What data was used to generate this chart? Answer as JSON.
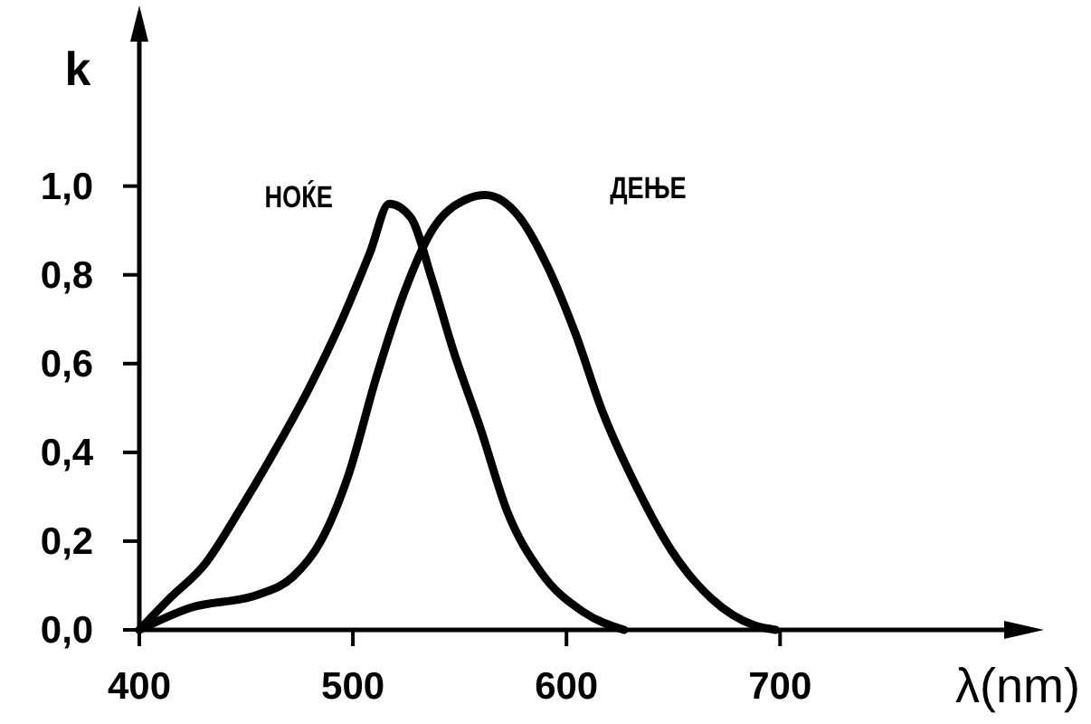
{
  "chart_data": {
    "type": "line",
    "xlabel": "λ(nm)",
    "ylabel": "k",
    "xlim": [
      400,
      810
    ],
    "ylim": [
      0,
      1.35
    ],
    "xticks": [
      400,
      500,
      600,
      700
    ],
    "yticks": [
      {
        "value": 0,
        "label": "0,0"
      },
      {
        "value": 0.2,
        "label": "0,2"
      },
      {
        "value": 0.4,
        "label": "0,4"
      },
      {
        "value": 0.6,
        "label": "0,6"
      },
      {
        "value": 0.8,
        "label": "0,8"
      },
      {
        "value": 1,
        "label": "1,0"
      }
    ],
    "grid": false,
    "legend": false,
    "marker": "none",
    "line_style": "solid",
    "series": [
      {
        "name": "НОЌЕ",
        "color": "#000000",
        "x": [
          400,
          414,
          431,
          447,
          463,
          479,
          495,
          508,
          517,
          527,
          537,
          547,
          560,
          572,
          588,
          608,
          627
        ],
        "values": [
          0,
          0.07,
          0.15,
          0.27,
          0.4,
          0.54,
          0.7,
          0.85,
          0.96,
          0.93,
          0.79,
          0.63,
          0.45,
          0.27,
          0.13,
          0.04,
          0
        ]
      },
      {
        "name": "ДЕЊЕ",
        "color": "#000000",
        "x": [
          400,
          424,
          456,
          472,
          485,
          498,
          511,
          524,
          537,
          553,
          562,
          578,
          591,
          604,
          617,
          633,
          649,
          668,
          688,
          698
        ],
        "values": [
          0,
          0.05,
          0.08,
          0.12,
          0.2,
          0.35,
          0.57,
          0.76,
          0.9,
          0.97,
          0.98,
          0.93,
          0.82,
          0.67,
          0.49,
          0.32,
          0.18,
          0.07,
          0.01,
          0
        ]
      }
    ]
  }
}
